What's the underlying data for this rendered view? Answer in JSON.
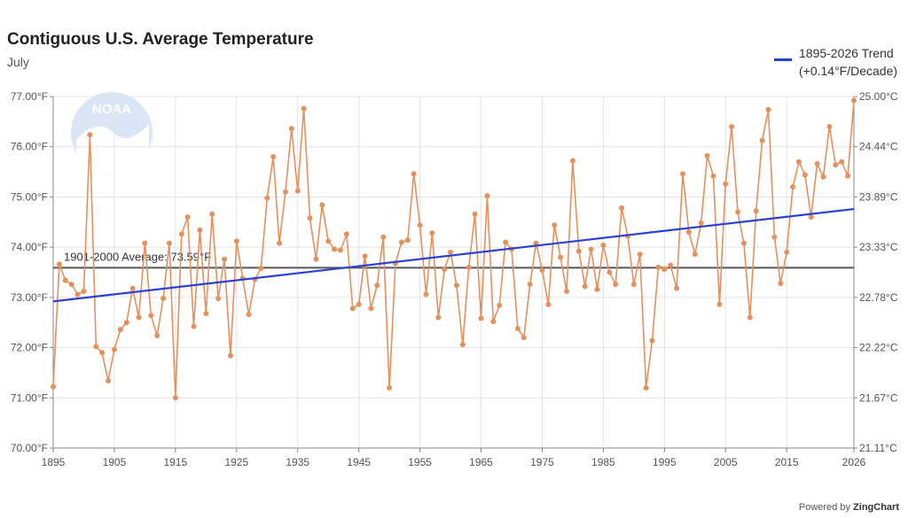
{
  "chart_data": {
    "type": "line",
    "title": "Contiguous U.S. Average Temperature",
    "subtitle": "July",
    "xlabel": "",
    "ylabel": "",
    "xlim": [
      1895,
      2026
    ],
    "ylim": [
      70,
      77
    ],
    "x_ticks": [
      "1895",
      "1905",
      "1915",
      "1925",
      "1935",
      "1945",
      "1955",
      "1965",
      "1975",
      "1985",
      "1995",
      "2005",
      "2015",
      "2026"
    ],
    "y_ticks_left": [
      "70.00°F",
      "71.00°F",
      "72.00°F",
      "73.00°F",
      "74.00°F",
      "75.00°F",
      "76.00°F",
      "77.00°F"
    ],
    "y_ticks_right": [
      "21.11°C",
      "21.67°C",
      "22.22°C",
      "22.78°C",
      "23.33°C",
      "23.89°C",
      "24.44°C",
      "25.00°C"
    ],
    "grid": true,
    "legend_position": "top-right",
    "colors": {
      "series": "#e3915d",
      "trend": "#2b3fd1",
      "average": "#555555"
    },
    "series": [
      {
        "x": [
          1895,
          1896,
          1897,
          1898,
          1899,
          1900,
          1901,
          1902,
          1903,
          1904,
          1905,
          1906,
          1907,
          1908,
          1909,
          1910,
          1911,
          1912,
          1913,
          1914,
          1915,
          1916,
          1917,
          1918,
          1919,
          1920,
          1921,
          1922,
          1923,
          1924,
          1925,
          1926,
          1927,
          1928,
          1929,
          1930,
          1931,
          1932,
          1933,
          1934,
          1935,
          1936,
          1937,
          1938,
          1939,
          1940,
          1941,
          1942,
          1943,
          1944,
          1945,
          1946,
          1947,
          1948,
          1949,
          1950,
          1951,
          1952,
          1953,
          1954,
          1955,
          1956,
          1957,
          1958,
          1959,
          1960,
          1961,
          1962,
          1963,
          1964,
          1965,
          1966,
          1967,
          1968,
          1969,
          1970,
          1971,
          1972,
          1973,
          1974,
          1975,
          1976,
          1977,
          1978,
          1979,
          1980,
          1981,
          1982,
          1983,
          1984,
          1985,
          1986,
          1987,
          1988,
          1989,
          1990,
          1991,
          1992,
          1993,
          1994,
          1995,
          1996,
          1997,
          1998,
          1999,
          2000,
          2001,
          2002,
          2003,
          2004,
          2005,
          2006,
          2007,
          2008,
          2009,
          2010,
          2011,
          2012,
          2013,
          2014,
          2015,
          2016,
          2017,
          2018,
          2019,
          2020,
          2021,
          2022,
          2023,
          2024,
          2025,
          2026
        ],
        "values": [
          71.22,
          73.66,
          73.34,
          73.26,
          73.06,
          73.12,
          76.24,
          72.02,
          71.9,
          71.34,
          71.96,
          72.36,
          72.5,
          73.18,
          72.6,
          74.08,
          72.64,
          72.24,
          72.98,
          74.08,
          71.0,
          74.26,
          74.6,
          72.42,
          74.34,
          72.68,
          74.66,
          72.98,
          73.76,
          71.84,
          74.12,
          73.38,
          72.66,
          73.36,
          73.58,
          74.98,
          75.8,
          74.08,
          75.1,
          76.36,
          75.12,
          76.76,
          74.58,
          73.76,
          74.84,
          74.12,
          73.96,
          73.94,
          74.26,
          72.78,
          72.86,
          73.82,
          72.78,
          73.24,
          74.2,
          71.2,
          73.68,
          74.1,
          74.14,
          75.46,
          74.44,
          73.06,
          74.28,
          72.6,
          73.56,
          73.9,
          73.24,
          72.06,
          73.6,
          74.66,
          72.58,
          75.02,
          72.52,
          72.84,
          74.1,
          73.96,
          72.38,
          72.2,
          73.26,
          74.08,
          73.54,
          72.86,
          74.44,
          73.8,
          73.12,
          75.72,
          73.92,
          73.22,
          73.96,
          73.16,
          74.04,
          73.5,
          73.26,
          74.78,
          74.22,
          73.26,
          73.86,
          71.2,
          72.14,
          73.6,
          73.56,
          73.64,
          73.18,
          75.46,
          74.3,
          73.86,
          74.48,
          75.82,
          75.42,
          72.86,
          75.26,
          76.4,
          74.7,
          74.08,
          72.6,
          74.72,
          76.12,
          76.74,
          74.2,
          73.28,
          73.9,
          75.2,
          75.7,
          75.44,
          74.6,
          75.66,
          75.4,
          76.4,
          75.64,
          75.7,
          75.42,
          76.92
        ]
      },
      {
        "name": "1895-2026 Trend\n(+0.14°F/Decade)",
        "type": "trend",
        "x": [
          1895,
          2026
        ],
        "values": [
          72.92,
          74.76
        ]
      }
    ],
    "reference_lines": [
      {
        "value": 73.59,
        "label": "1901-2000 Average: 73.59°F"
      }
    ],
    "legend": {
      "line1": "1895-2026 Trend",
      "line2": "(+0.14°F/Decade)"
    },
    "watermark": "NOAA"
  },
  "footer": {
    "prefix": "Powered by",
    "brand": "ZingChart"
  }
}
